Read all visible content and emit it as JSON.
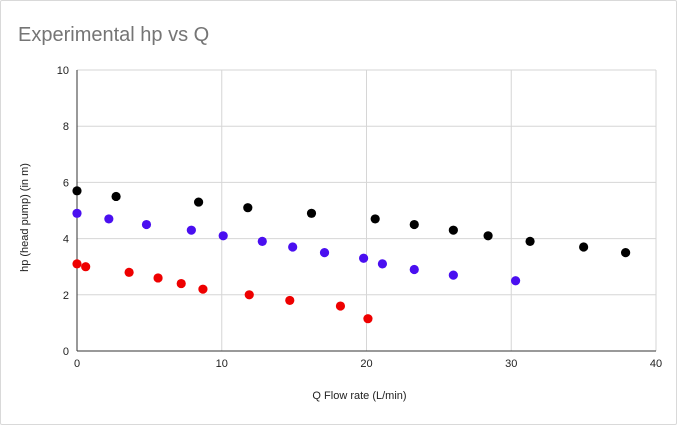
{
  "chart_data": {
    "type": "scatter",
    "title": "Experimental hp vs Q",
    "xlabel": "Q Flow rate (L/min)",
    "ylabel": "hp (head pump) (in m)",
    "xlim": [
      0,
      40
    ],
    "ylim": [
      0,
      10
    ],
    "x_ticks": [
      0,
      10,
      20,
      30,
      40
    ],
    "y_ticks": [
      0,
      2,
      4,
      6,
      8,
      10
    ],
    "grid": true,
    "legend": "none",
    "series": [
      {
        "name": "black series",
        "color": "#000000",
        "points": [
          {
            "x": 0.0,
            "y": 5.7
          },
          {
            "x": 2.7,
            "y": 5.5
          },
          {
            "x": 8.4,
            "y": 5.3
          },
          {
            "x": 11.8,
            "y": 5.1
          },
          {
            "x": 16.2,
            "y": 4.9
          },
          {
            "x": 20.6,
            "y": 4.7
          },
          {
            "x": 23.3,
            "y": 4.5
          },
          {
            "x": 26.0,
            "y": 4.3
          },
          {
            "x": 28.4,
            "y": 4.1
          },
          {
            "x": 31.3,
            "y": 3.9
          },
          {
            "x": 35.0,
            "y": 3.7
          },
          {
            "x": 37.9,
            "y": 3.5
          }
        ]
      },
      {
        "name": "blue series",
        "color": "#4a0ff0",
        "points": [
          {
            "x": 0.0,
            "y": 4.9
          },
          {
            "x": 2.2,
            "y": 4.7
          },
          {
            "x": 4.8,
            "y": 4.5
          },
          {
            "x": 7.9,
            "y": 4.3
          },
          {
            "x": 10.1,
            "y": 4.1
          },
          {
            "x": 12.8,
            "y": 3.9
          },
          {
            "x": 14.9,
            "y": 3.7
          },
          {
            "x": 17.1,
            "y": 3.5
          },
          {
            "x": 19.8,
            "y": 3.3
          },
          {
            "x": 21.1,
            "y": 3.1
          },
          {
            "x": 23.3,
            "y": 2.9
          },
          {
            "x": 26.0,
            "y": 2.7
          },
          {
            "x": 30.3,
            "y": 2.5
          }
        ]
      },
      {
        "name": "red series",
        "color": "#ee0000",
        "points": [
          {
            "x": 0.0,
            "y": 3.1
          },
          {
            "x": 0.6,
            "y": 3.0
          },
          {
            "x": 3.6,
            "y": 2.8
          },
          {
            "x": 5.6,
            "y": 2.6
          },
          {
            "x": 7.2,
            "y": 2.4
          },
          {
            "x": 8.7,
            "y": 2.2
          },
          {
            "x": 11.9,
            "y": 2.0
          },
          {
            "x": 14.7,
            "y": 1.8
          },
          {
            "x": 18.2,
            "y": 1.6
          },
          {
            "x": 20.1,
            "y": 1.15
          }
        ]
      }
    ]
  }
}
